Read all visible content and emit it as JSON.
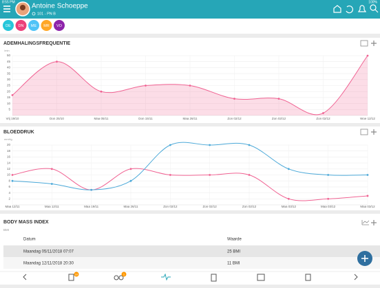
{
  "status": {
    "time": "8:55 PM",
    "battery": "100%"
  },
  "header": {
    "name": "Antoine Schoeppe",
    "room": "101 - PN B"
  },
  "tabs": [
    {
      "label": "DE",
      "color": "#26c6da"
    },
    {
      "label": "DN",
      "color": "#ec407a"
    },
    {
      "label": "ME",
      "color": "#4fc3f7"
    },
    {
      "label": "MR",
      "color": "#ffa726"
    },
    {
      "label": "VO",
      "color": "#8e24aa"
    }
  ],
  "chart_data": [
    {
      "type": "line",
      "title": "ADEMHALINGSFREQUENTIE",
      "unit": "/min",
      "categories": [
        "Vrij 19/10",
        "Don 25/10",
        "Maa 05/11",
        "Don 15/11",
        "Maa 26/11",
        "Zon 02/12",
        "Zon 02/12",
        "Zon 02/12",
        "Woe 12/12"
      ],
      "series": [
        {
          "color": "#f06292",
          "values": [
            17,
            45,
            20,
            25,
            25,
            14,
            14,
            2,
            50
          ]
        }
      ],
      "ylim": [
        0,
        50
      ],
      "yticks": [
        5,
        10,
        15,
        20,
        25,
        30,
        35,
        40,
        45,
        50
      ],
      "grid": true,
      "fill_area": true
    },
    {
      "type": "line",
      "title": "BLOEDDRUK",
      "unit": "mmHg",
      "categories": [
        "Maa 12/11",
        "Maa 12/11",
        "Maa 19/11",
        "Maa 26/11",
        "Zon 02/12",
        "Zon 02/12",
        "Zon 02/12",
        "Maa 03/12",
        "Maa 03/12",
        "Maa 03/12"
      ],
      "series": [
        {
          "color": "#f06292",
          "values": [
            10,
            12,
            5,
            12,
            10,
            10,
            10,
            2,
            2,
            3
          ]
        },
        {
          "color": "#4aa8d8",
          "values": [
            8,
            7,
            5,
            8,
            20,
            20,
            20,
            12,
            10,
            10
          ]
        }
      ],
      "ylim": [
        0,
        20
      ],
      "yticks": [
        2,
        4,
        6,
        8,
        10,
        12,
        14,
        16,
        18,
        20
      ],
      "grid": true,
      "fill_area": false
    }
  ],
  "bmi": {
    "title": "BODY MASS INDEX",
    "unit": "BMI",
    "columns": [
      "Datum",
      "Waarde"
    ],
    "rows": [
      [
        "Maandag 05/11/2018 07:07",
        "25 BMI"
      ],
      [
        "Maandag 12/11/2018 20:30",
        "11 BMI"
      ]
    ]
  },
  "nav": {
    "badges": [
      "10",
      "1"
    ]
  }
}
